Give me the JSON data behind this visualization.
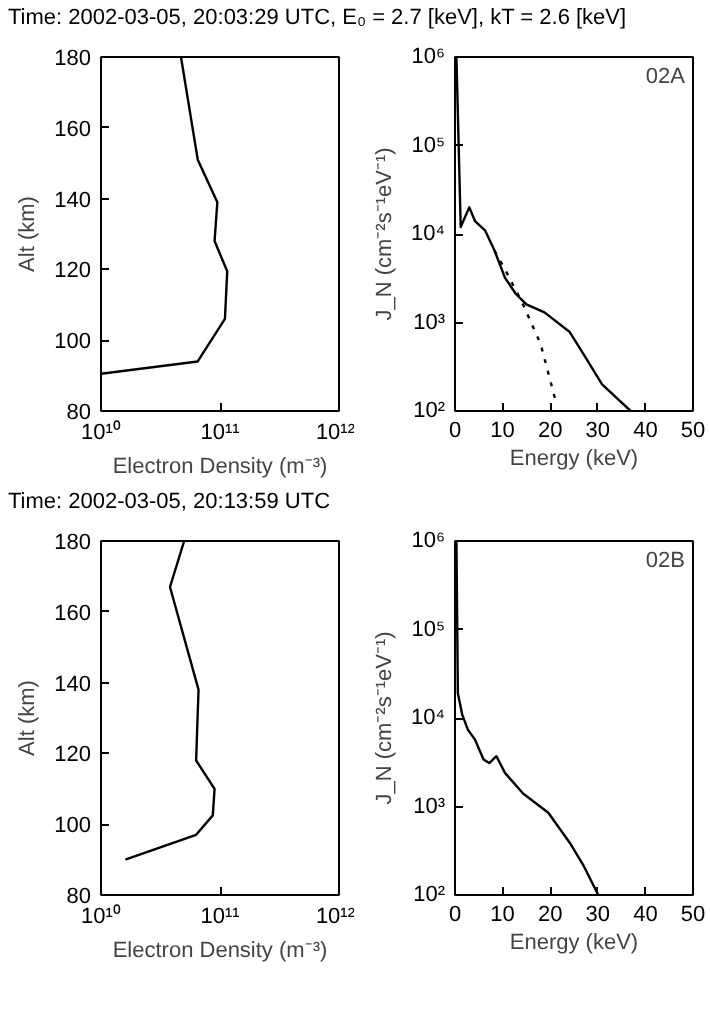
{
  "chart_data": [
    {
      "type": "line",
      "title": "Time: 2002-03-05, 20:03:29 UTC,  E₀ =  2.7 [keV],  kT =  2.6 [keV]",
      "xlabel": "Electron Density (m⁻³)",
      "ylabel": "Alt (km)",
      "log": "x",
      "xlim": [
        10000000000.0,
        1000000000000.0
      ],
      "ylim": [
        80,
        180
      ],
      "xticks": [
        {
          "value": 10000000000.0,
          "label": "10¹⁰"
        },
        {
          "value": 100000000000.0,
          "label": "10¹¹"
        },
        {
          "value": 1000000000000.0,
          "label": "10¹²"
        }
      ],
      "yticks": [
        80,
        100,
        120,
        140,
        160,
        180
      ],
      "grid": false,
      "series": [
        {
          "color": "#000000",
          "x": [
            10000000000.0,
            65000000000.0,
            110000000000.0,
            115000000000.0,
            90000000000.0,
            95000000000.0,
            65000000000.0,
            47000000000.0
          ],
          "values": [
            90.5,
            94,
            106,
            119.5,
            128,
            139,
            151,
            180
          ]
        }
      ]
    },
    {
      "type": "line",
      "xlabel": "Energy (keV)",
      "ylabel": "J_N (cm⁻²s⁻¹eV⁻¹)",
      "log": "y",
      "xlim": [
        0,
        50
      ],
      "ylim": [
        100,
        1000000
      ],
      "xticks": [
        0,
        10,
        20,
        30,
        40,
        50
      ],
      "yticks": [
        {
          "value": 100,
          "label": "10²"
        },
        {
          "value": 1000,
          "label": "10³"
        },
        {
          "value": 10000,
          "label": "10⁴"
        },
        {
          "value": 100000,
          "label": "10⁵"
        },
        {
          "value": 1000000,
          "label": "10⁶"
        }
      ],
      "grid": false,
      "annotations": [
        "02A"
      ],
      "series": [
        {
          "color": "#000000",
          "line_style": "solid",
          "x": [
            0.3,
            1.2,
            3,
            4.2,
            6.3,
            8.3,
            10.5,
            12.8,
            15,
            18.8,
            24.1,
            27,
            30.9,
            36.9
          ],
          "values": [
            1000000,
            12000,
            20000,
            14000,
            11000,
            6500,
            3200,
            2100,
            1600,
            1300,
            780,
            440,
            200,
            100
          ]
        },
        {
          "color": "#000000",
          "line_style": "dotted",
          "x": [
            8.3,
            10.5,
            14.3,
            18,
            21.4
          ],
          "values": [
            6500,
            4000,
            1600,
            570,
            115
          ]
        }
      ]
    },
    {
      "type": "line",
      "title": "Time: 2002-03-05, 20:13:59 UTC",
      "xlabel": "Electron Density (m⁻³)",
      "ylabel": "Alt (km)",
      "log": "x",
      "xlim": [
        10000000000.0,
        1000000000000.0
      ],
      "ylim": [
        80,
        180
      ],
      "xticks": [
        {
          "value": 10000000000.0,
          "label": "10¹⁰"
        },
        {
          "value": 100000000000.0,
          "label": "10¹¹"
        },
        {
          "value": 1000000000000.0,
          "label": "10¹²"
        }
      ],
      "yticks": [
        80,
        100,
        120,
        140,
        160,
        180
      ],
      "grid": false,
      "series": [
        {
          "color": "#000000",
          "x": [
            16000000000.0,
            63000000000.0,
            87000000000.0,
            90000000000.0,
            63000000000.0,
            66000000000.0,
            38000000000.0,
            50000000000.0
          ],
          "values": [
            90,
            97,
            102.5,
            110,
            118,
            138,
            167,
            180
          ]
        }
      ]
    },
    {
      "type": "line",
      "xlabel": "Energy (keV)",
      "ylabel": "J_N (cm⁻²s⁻¹eV⁻¹)",
      "log": "y",
      "xlim": [
        0,
        50
      ],
      "ylim": [
        100,
        1000000
      ],
      "xticks": [
        0,
        10,
        20,
        30,
        40,
        50
      ],
      "yticks": [
        {
          "value": 100,
          "label": "10²"
        },
        {
          "value": 1000,
          "label": "10³"
        },
        {
          "value": 10000,
          "label": "10⁴"
        },
        {
          "value": 100000,
          "label": "10⁵"
        },
        {
          "value": 1000000,
          "label": "10⁶"
        }
      ],
      "grid": false,
      "annotations": [
        "02B"
      ],
      "series": [
        {
          "color": "#000000",
          "line_style": "solid",
          "x": [
            0.3,
            0.6,
            1.5,
            2.7,
            4.2,
            6,
            7.2,
            8.7,
            10.5,
            14.3,
            19.6,
            24.1,
            27.1,
            30.1
          ],
          "values": [
            1000000,
            19000,
            11000,
            7400,
            5700,
            3400,
            3100,
            3700,
            2400,
            1400,
            850,
            390,
            210,
            100
          ]
        }
      ]
    }
  ]
}
